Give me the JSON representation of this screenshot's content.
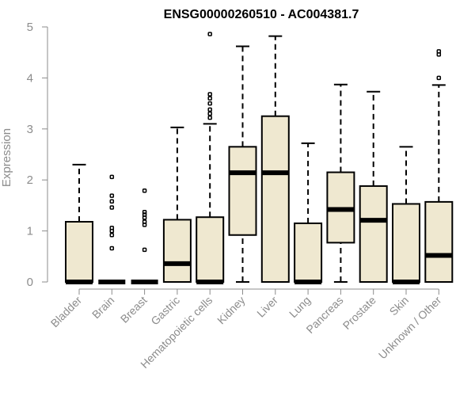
{
  "chart_data": {
    "type": "boxplot",
    "title": "ENSG00000260510 - AC004381.7",
    "ylabel": "Expression",
    "ylim": [
      0,
      5
    ],
    "yticks": [
      0,
      1,
      2,
      3,
      4,
      5
    ],
    "box_color": "#efe8d0",
    "categories": [
      "Bladder",
      "Brain",
      "Breast",
      "Gastric",
      "Hematopoietic cells",
      "Kidney",
      "Liver",
      "Lung",
      "Pancreas",
      "Prostate",
      "Skin",
      "Unknown / Other"
    ],
    "boxes": [
      {
        "q1": 0,
        "median": 0,
        "q3": 1.18,
        "whisker_low": 0,
        "whisker_high": 2.3,
        "outliers": []
      },
      {
        "q1": 0,
        "median": 0,
        "q3": 0,
        "whisker_low": 0,
        "whisker_high": 0,
        "outliers": [
          0.66,
          0.92,
          1.0,
          1.06,
          1.46,
          1.58,
          1.69,
          2.06
        ]
      },
      {
        "q1": 0,
        "median": 0,
        "q3": 0,
        "whisker_low": 0,
        "whisker_high": 0,
        "outliers": [
          0.63,
          1.12,
          1.18,
          1.26,
          1.32,
          1.37,
          1.79
        ]
      },
      {
        "q1": 0,
        "median": 0.36,
        "q3": 1.22,
        "whisker_low": 0,
        "whisker_high": 3.03,
        "outliers": []
      },
      {
        "q1": 0,
        "median": 0,
        "q3": 1.27,
        "whisker_low": 0,
        "whisker_high": 3.1,
        "outliers": [
          3.22,
          3.3,
          3.38,
          3.5,
          3.6,
          3.68,
          4.86
        ]
      },
      {
        "q1": 0.92,
        "median": 2.14,
        "q3": 2.65,
        "whisker_low": 0,
        "whisker_high": 4.62,
        "outliers": []
      },
      {
        "q1": 0,
        "median": 2.14,
        "q3": 3.25,
        "whisker_low": 0,
        "whisker_high": 4.82,
        "outliers": []
      },
      {
        "q1": 0,
        "median": 0,
        "q3": 1.15,
        "whisker_low": 0,
        "whisker_high": 2.72,
        "outliers": []
      },
      {
        "q1": 0.77,
        "median": 1.42,
        "q3": 2.15,
        "whisker_low": 0,
        "whisker_high": 3.87,
        "outliers": []
      },
      {
        "q1": 0,
        "median": 1.21,
        "q3": 1.88,
        "whisker_low": 0,
        "whisker_high": 3.73,
        "outliers": []
      },
      {
        "q1": 0,
        "median": 0,
        "q3": 1.53,
        "whisker_low": 0,
        "whisker_high": 2.65,
        "outliers": []
      },
      {
        "q1": 0,
        "median": 0.52,
        "q3": 1.57,
        "whisker_low": 0,
        "whisker_high": 3.86,
        "outliers": [
          4.0,
          4.46,
          4.52
        ]
      }
    ]
  }
}
